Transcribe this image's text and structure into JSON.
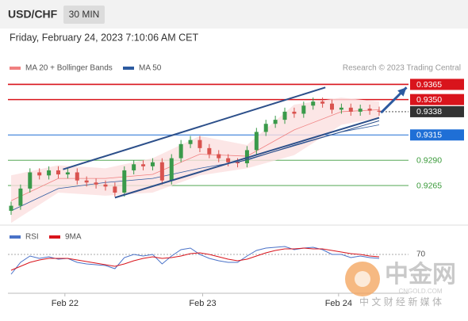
{
  "chart_data": {
    "type": "candlestick",
    "symbol": "USD/CHF",
    "timeframe": "30 MIN",
    "subtitle": "Friday, February 24, 2023 7:10:06 AM CET",
    "source": "Research © 2023 Trading Central",
    "xlim": [
      -0.336,
      42.11
    ],
    "xticks": [
      {
        "value": 5.7,
        "label": "Feb 22"
      },
      {
        "value": 20.3,
        "label": "Feb 23"
      },
      {
        "value": 34.7,
        "label": "Feb 24"
      }
    ],
    "ylim": [
      0.9229,
      0.9374
    ],
    "up_color": "#3a9a4a",
    "down_color": "#d9534f",
    "candles": {
      "open": [
        0.924,
        0.9245,
        0.9262,
        0.9278,
        0.9275,
        0.928,
        0.9276,
        0.9278,
        0.927,
        0.9268,
        0.9266,
        0.9264,
        0.9258,
        0.928,
        0.9286,
        0.9284,
        0.9288,
        0.927,
        0.9292,
        0.9306,
        0.931,
        0.9302,
        0.9296,
        0.9292,
        0.9288,
        0.9287,
        0.93,
        0.9318,
        0.9326,
        0.933,
        0.9338,
        0.9336,
        0.9344,
        0.9348,
        0.9346,
        0.934,
        0.9342,
        0.9338,
        0.9341,
        0.9339
      ],
      "high": [
        0.9249,
        0.9266,
        0.9282,
        0.9282,
        0.9284,
        0.9284,
        0.9282,
        0.9282,
        0.9274,
        0.9272,
        0.927,
        0.9268,
        0.9284,
        0.929,
        0.929,
        0.9292,
        0.9292,
        0.9296,
        0.931,
        0.9314,
        0.9314,
        0.9306,
        0.93,
        0.9296,
        0.9292,
        0.9304,
        0.9322,
        0.933,
        0.9334,
        0.9342,
        0.9342,
        0.9348,
        0.9352,
        0.9352,
        0.935,
        0.9346,
        0.9346,
        0.9345,
        0.9345,
        0.9343
      ],
      "low": [
        0.9236,
        0.9241,
        0.9258,
        0.9271,
        0.9271,
        0.9272,
        0.9272,
        0.9266,
        0.9264,
        0.9262,
        0.926,
        0.9254,
        0.9254,
        0.9276,
        0.928,
        0.928,
        0.9266,
        0.9266,
        0.9288,
        0.9302,
        0.9298,
        0.9292,
        0.9288,
        0.9284,
        0.9283,
        0.9283,
        0.9296,
        0.9314,
        0.9322,
        0.9326,
        0.9332,
        0.9332,
        0.934,
        0.9342,
        0.9336,
        0.9336,
        0.9334,
        0.9334,
        0.9335,
        0.9334
      ],
      "close": [
        0.9245,
        0.9262,
        0.9278,
        0.9275,
        0.928,
        0.9276,
        0.9278,
        0.927,
        0.9268,
        0.9266,
        0.9264,
        0.9258,
        0.928,
        0.9286,
        0.9284,
        0.9288,
        0.927,
        0.9292,
        0.9306,
        0.931,
        0.9302,
        0.9296,
        0.9292,
        0.9288,
        0.9287,
        0.93,
        0.9318,
        0.9326,
        0.933,
        0.9338,
        0.9336,
        0.9344,
        0.9348,
        0.9346,
        0.934,
        0.9342,
        0.9338,
        0.9341,
        0.9339,
        0.9338
      ]
    },
    "indicators": {
      "x": [
        0,
        5,
        10,
        15,
        20,
        25,
        30,
        35,
        39
      ],
      "bollinger": {
        "name": "MA 20 + Bollinger Bands",
        "color": "#f08080",
        "band_color": "#fbe0e0",
        "ma": [
          0.925,
          0.9272,
          0.9272,
          0.9276,
          0.9296,
          0.9294,
          0.932,
          0.9338,
          0.934
        ],
        "upper": [
          0.9275,
          0.9285,
          0.9282,
          0.9292,
          0.9314,
          0.9305,
          0.9345,
          0.9352,
          0.9348
        ],
        "lower": [
          0.9228,
          0.9258,
          0.9255,
          0.9258,
          0.9275,
          0.9282,
          0.9295,
          0.9325,
          0.9332
        ]
      },
      "ma50": {
        "name": "MA 50",
        "color": "#2c5aa0",
        "values": [
          0.924,
          0.9262,
          0.9268,
          0.9272,
          0.9282,
          0.929,
          0.9305,
          0.9318,
          0.9325
        ]
      }
    },
    "levels": [
      {
        "value": 0.9365,
        "label": "0.9365",
        "color": "#d9141c",
        "box": true
      },
      {
        "value": 0.935,
        "label": "0.9350",
        "color": "#d9141c",
        "box": true
      },
      {
        "value": 0.9338,
        "label": "0.9338",
        "color": "#333333",
        "box": true,
        "dotted": true
      },
      {
        "value": 0.9315,
        "label": "0.9315",
        "color": "#1f6fd6",
        "box": true
      },
      {
        "value": 0.929,
        "label": "0.9290",
        "color": "#3a9a3a",
        "box": false
      },
      {
        "value": 0.9265,
        "label": "0.9265",
        "color": "#3a9a3a",
        "box": false
      }
    ],
    "trendlines": {
      "color": "#2c4f8a",
      "lines": [
        {
          "x": [
            5.5,
            33.3
          ],
          "values": [
            0.9281,
            0.9362
          ]
        },
        {
          "x": [
            11.0,
            39.0
          ],
          "values": [
            0.9253,
            0.9332
          ]
        },
        {
          "x": [
            24.0,
            39.0
          ],
          "values": [
            0.9288,
            0.9329
          ]
        }
      ]
    },
    "arrow": {
      "color": "#2c5aa0",
      "x": [
        39.2,
        41.9
      ],
      "values": [
        0.9337,
        0.9362
      ]
    },
    "rsi": {
      "ylim": [
        20,
        100
      ],
      "yticks": [
        70
      ],
      "series": [
        {
          "name": "RSI",
          "color": "#4a72c8",
          "values": [
            45,
            60,
            68,
            65,
            67,
            64,
            65,
            60,
            58,
            57,
            56,
            52,
            66,
            70,
            68,
            70,
            58,
            68,
            76,
            78,
            70,
            65,
            62,
            60,
            60,
            68,
            75,
            78,
            79,
            80,
            76,
            78,
            79,
            76,
            70,
            70,
            66,
            68,
            66,
            65
          ]
        },
        {
          "name": "9MA",
          "color": "#d9141c",
          "values": [
            50,
            55,
            60,
            63,
            65,
            65,
            65,
            63,
            61,
            59,
            57,
            55,
            58,
            62,
            65,
            67,
            65,
            66,
            68,
            71,
            72,
            70,
            67,
            64,
            62,
            64,
            68,
            72,
            75,
            77,
            77,
            78,
            77,
            77,
            75,
            73,
            71,
            70,
            68,
            67
          ]
        }
      ]
    },
    "watermark": {
      "brand": "中金网",
      "site": "CNGOLD.COM",
      "tagline": "中 文 财 经 新 媒 体"
    }
  }
}
